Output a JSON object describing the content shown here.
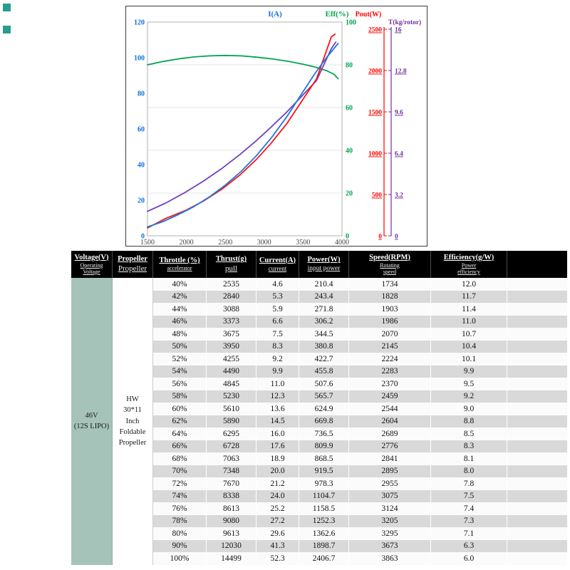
{
  "figure": {
    "corner_marker_color": "#2a9d8f"
  },
  "chart_data": {
    "type": "line",
    "title": "",
    "x_axis": {
      "label": "",
      "min": 1500,
      "max": 4000,
      "ticks": [
        1500,
        2000,
        2500,
        3000,
        3500,
        4000
      ]
    },
    "axes": {
      "current": {
        "title": "I(A)",
        "color": "#0d6fd8",
        "min": 0,
        "max": 120,
        "ticks": [
          0,
          20,
          40,
          60,
          80,
          100,
          120
        ],
        "side": "left"
      },
      "efficiency": {
        "title": "Eff(%)",
        "color": "#00a551",
        "min": 0,
        "max": 100,
        "ticks": [
          0,
          20,
          40,
          60,
          80,
          100
        ],
        "side": "right"
      },
      "power": {
        "title": "Pout(W)",
        "color": "#ff0000",
        "min": 0,
        "max": 2500,
        "ticks": [
          0,
          500,
          1000,
          1500,
          2000,
          2500
        ],
        "side": "standalone"
      },
      "thrust": {
        "title": "T(kg/rotor)",
        "color": "#7030a0",
        "min": 0,
        "max": 16,
        "ticks": [
          0,
          3.2,
          6.4,
          9.6,
          12.8,
          16
        ],
        "side": "standalone"
      }
    },
    "series": [
      {
        "name": "Eff(%)",
        "axis": "efficiency",
        "color": "#00a551",
        "points": [
          [
            1500,
            80
          ],
          [
            1700,
            81.6
          ],
          [
            1900,
            82.8
          ],
          [
            2100,
            83.7
          ],
          [
            2300,
            84.2
          ],
          [
            2500,
            84.4
          ],
          [
            2700,
            84.2
          ],
          [
            2900,
            83.6
          ],
          [
            3100,
            82.8
          ],
          [
            3300,
            81.7
          ],
          [
            3500,
            80.3
          ],
          [
            3650,
            79.0
          ],
          [
            3800,
            77.3
          ],
          [
            3900,
            75.5
          ],
          [
            3950,
            73.5
          ]
        ]
      },
      {
        "name": "T(kg/rotor)",
        "axis": "thrust",
        "color": "#6f42c1",
        "points": [
          [
            1500,
            1.9
          ],
          [
            1734,
            2.54
          ],
          [
            1986,
            3.37
          ],
          [
            2224,
            4.26
          ],
          [
            2459,
            5.23
          ],
          [
            2689,
            6.3
          ],
          [
            2895,
            7.35
          ],
          [
            3075,
            8.34
          ],
          [
            3295,
            9.61
          ],
          [
            3673,
            12.03
          ],
          [
            3863,
            14.5
          ],
          [
            3920,
            15.0
          ]
        ]
      },
      {
        "name": "Pout(W)",
        "axis": "power",
        "color": "#ff1111",
        "points": [
          [
            1500,
            95
          ],
          [
            1734,
            210
          ],
          [
            1986,
            306
          ],
          [
            2224,
            423
          ],
          [
            2459,
            566
          ],
          [
            2689,
            737
          ],
          [
            2895,
            920
          ],
          [
            3075,
            1105
          ],
          [
            3295,
            1363
          ],
          [
            3673,
            1899
          ],
          [
            3863,
            2407
          ],
          [
            3910,
            2440
          ]
        ]
      },
      {
        "name": "I(A)",
        "axis": "current",
        "color": "#1e78e0",
        "points": [
          [
            1500,
            5
          ],
          [
            1700,
            8
          ],
          [
            1900,
            12
          ],
          [
            2100,
            16.5
          ],
          [
            2300,
            22
          ],
          [
            2500,
            28.5
          ],
          [
            2700,
            36
          ],
          [
            2900,
            45
          ],
          [
            3100,
            55.5
          ],
          [
            3300,
            67.5
          ],
          [
            3500,
            81
          ],
          [
            3650,
            91
          ],
          [
            3800,
            100
          ],
          [
            3950,
            108
          ]
        ]
      }
    ]
  },
  "table": {
    "headers": [
      {
        "main": "Voltage(V)",
        "sub": "Operating Voltage"
      },
      {
        "main": "Propeller",
        "sub": "Propeller"
      },
      {
        "main": "Throttle (%)",
        "sub": "accelerator"
      },
      {
        "main": "Thrust(g)",
        "sub": "pull"
      },
      {
        "main": "Current(A)",
        "sub": "current"
      },
      {
        "main": "Power(W)",
        "sub": "input power"
      },
      {
        "main": "Speed(RPM)",
        "sub": "Rotating speed"
      },
      {
        "main": "Efficiency(g/W)",
        "sub": "Power efficiency"
      },
      {
        "main": "",
        "sub": ""
      }
    ],
    "columns": [
      "throttle",
      "thrust",
      "current",
      "power",
      "speed",
      "efficiency",
      "filler"
    ],
    "voltage_cell": {
      "line1": "46V",
      "line2": "(12S LIPO)"
    },
    "propeller_cell": [
      "HW",
      "30*11",
      "Inch",
      "Foldable",
      "Propeller"
    ],
    "rows": [
      [
        "40%",
        "2535",
        "4.6",
        "210.4",
        "1734",
        "12.0",
        ""
      ],
      [
        "42%",
        "2840",
        "5.3",
        "243.4",
        "1828",
        "11.7",
        ""
      ],
      [
        "44%",
        "3088",
        "5.9",
        "271.8",
        "1903",
        "11.4",
        ""
      ],
      [
        "46%",
        "3373",
        "6.6",
        "306.2",
        "1986",
        "11.0",
        ""
      ],
      [
        "48%",
        "3675",
        "7.5",
        "344.5",
        "2070",
        "10.7",
        ""
      ],
      [
        "50%",
        "3950",
        "8.3",
        "380.8",
        "2145",
        "10.4",
        ""
      ],
      [
        "52%",
        "4255",
        "9.2",
        "422.7",
        "2224",
        "10.1",
        ""
      ],
      [
        "54%",
        "4490",
        "9.9",
        "455.8",
        "2283",
        "9.9",
        ""
      ],
      [
        "56%",
        "4845",
        "11.0",
        "507.6",
        "2370",
        "9.5",
        ""
      ],
      [
        "58%",
        "5230",
        "12.3",
        "565.7",
        "2459",
        "9.2",
        ""
      ],
      [
        "60%",
        "5610",
        "13.6",
        "624.9",
        "2544",
        "9.0",
        ""
      ],
      [
        "62%",
        "5890",
        "14.5",
        "669.8",
        "2604",
        "8.8",
        ""
      ],
      [
        "64%",
        "6295",
        "16.0",
        "736.5",
        "2689",
        "8.5",
        ""
      ],
      [
        "66%",
        "6728",
        "17.6",
        "809.9",
        "2776",
        "8.3",
        ""
      ],
      [
        "68%",
        "7063",
        "18.9",
        "868.5",
        "2841",
        "8.1",
        ""
      ],
      [
        "70%",
        "7348",
        "20.0",
        "919.5",
        "2895",
        "8.0",
        ""
      ],
      [
        "72%",
        "7670",
        "21.2",
        "978.3",
        "2955",
        "7.8",
        ""
      ],
      [
        "74%",
        "8338",
        "24.0",
        "1104.7",
        "3075",
        "7.5",
        ""
      ],
      [
        "76%",
        "8613",
        "25.2",
        "1158.5",
        "3124",
        "7.4",
        ""
      ],
      [
        "78%",
        "9080",
        "27.2",
        "1252.3",
        "3205",
        "7.3",
        ""
      ],
      [
        "80%",
        "9613",
        "29.6",
        "1362.6",
        "3295",
        "7.1",
        ""
      ],
      [
        "90%",
        "12030",
        "41.3",
        "1898.7",
        "3673",
        "6.3",
        ""
      ],
      [
        "100%",
        "14499",
        "52.3",
        "2406.7",
        "3863",
        "6.0",
        ""
      ]
    ]
  }
}
